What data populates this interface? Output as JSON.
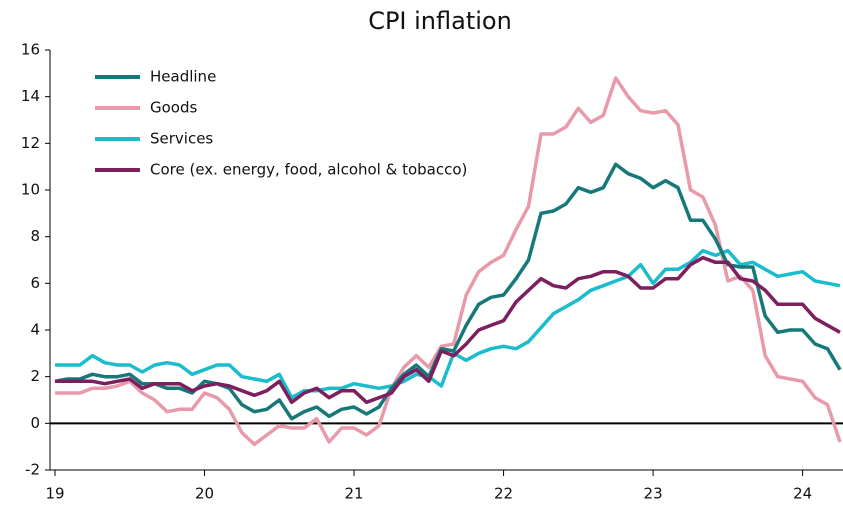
{
  "chart_data": {
    "type": "line",
    "title": "CPI inflation",
    "categories": [
      "19",
      null,
      null,
      null,
      null,
      null,
      null,
      null,
      null,
      null,
      null,
      null,
      "20",
      null,
      null,
      null,
      null,
      null,
      null,
      null,
      null,
      null,
      null,
      null,
      "21",
      null,
      null,
      null,
      null,
      null,
      null,
      null,
      null,
      null,
      null,
      null,
      "22",
      null,
      null,
      null,
      null,
      null,
      null,
      null,
      null,
      null,
      null,
      null,
      "23",
      null,
      null,
      null,
      null,
      null,
      null,
      null,
      null,
      null,
      null,
      null,
      "24",
      null,
      null,
      null
    ],
    "series": [
      {
        "name": "Headline",
        "color": "#17787a",
        "values": [
          1.8,
          1.9,
          1.9,
          2.1,
          2.0,
          2.0,
          2.1,
          1.7,
          1.7,
          1.5,
          1.5,
          1.3,
          1.8,
          1.7,
          1.5,
          0.8,
          0.5,
          0.6,
          1.0,
          0.2,
          0.5,
          0.7,
          0.3,
          0.6,
          0.7,
          0.4,
          0.7,
          1.5,
          2.1,
          2.5,
          2.0,
          3.2,
          3.1,
          4.2,
          5.1,
          5.4,
          5.5,
          6.2,
          7.0,
          9.0,
          9.1,
          9.4,
          10.1,
          9.9,
          10.1,
          11.1,
          10.7,
          10.5,
          10.1,
          10.4,
          10.1,
          8.7,
          8.7,
          7.9,
          6.8,
          6.7,
          6.7,
          4.6,
          3.9,
          4.0,
          4.0,
          3.4,
          3.2,
          2.3
        ]
      },
      {
        "name": "Goods",
        "color": "#e899aa",
        "values": [
          1.3,
          1.3,
          1.3,
          1.5,
          1.5,
          1.6,
          1.8,
          1.3,
          1.0,
          0.5,
          0.6,
          0.6,
          1.3,
          1.1,
          0.6,
          -0.4,
          -0.9,
          -0.5,
          -0.1,
          -0.2,
          -0.2,
          0.2,
          -0.8,
          -0.2,
          -0.2,
          -0.5,
          -0.1,
          1.5,
          2.4,
          2.9,
          2.4,
          3.3,
          3.4,
          5.5,
          6.5,
          6.9,
          7.2,
          8.3,
          9.3,
          12.4,
          12.4,
          12.7,
          13.5,
          12.9,
          13.2,
          14.8,
          14.0,
          13.4,
          13.3,
          13.4,
          12.8,
          10.0,
          9.7,
          8.5,
          6.1,
          6.3,
          5.7,
          2.9,
          2.0,
          1.9,
          1.8,
          1.1,
          0.8,
          -0.8
        ]
      },
      {
        "name": "Services",
        "color": "#1bbccc",
        "values": [
          2.5,
          2.5,
          2.5,
          2.9,
          2.6,
          2.5,
          2.5,
          2.2,
          2.5,
          2.6,
          2.5,
          2.1,
          2.3,
          2.5,
          2.5,
          2.0,
          1.9,
          1.8,
          2.1,
          1.1,
          1.4,
          1.4,
          1.5,
          1.5,
          1.7,
          1.6,
          1.5,
          1.6,
          1.8,
          2.1,
          2.0,
          1.6,
          3.0,
          2.7,
          3.0,
          3.2,
          3.3,
          3.2,
          3.5,
          4.1,
          4.7,
          5.0,
          5.3,
          5.7,
          5.9,
          6.1,
          6.3,
          6.8,
          6.0,
          6.6,
          6.6,
          6.9,
          7.4,
          7.2,
          7.4,
          6.8,
          6.9,
          6.6,
          6.3,
          6.4,
          6.5,
          6.1,
          6.0,
          5.9
        ]
      },
      {
        "name": "Core (ex. energy, food, alcohol & tobacco)",
        "color": "#7c1f5e",
        "values": [
          1.8,
          1.8,
          1.8,
          1.8,
          1.7,
          1.8,
          1.9,
          1.5,
          1.7,
          1.7,
          1.7,
          1.4,
          1.6,
          1.7,
          1.6,
          1.4,
          1.2,
          1.4,
          1.8,
          0.9,
          1.3,
          1.5,
          1.1,
          1.4,
          1.4,
          0.9,
          1.1,
          1.3,
          2.0,
          2.3,
          1.8,
          3.1,
          2.9,
          3.4,
          4.0,
          4.2,
          4.4,
          5.2,
          5.7,
          6.2,
          5.9,
          5.8,
          6.2,
          6.3,
          6.5,
          6.5,
          6.3,
          5.8,
          5.8,
          6.2,
          6.2,
          6.8,
          7.1,
          6.9,
          6.9,
          6.2,
          6.1,
          5.7,
          5.1,
          5.1,
          5.1,
          4.5,
          4.2,
          3.9
        ]
      }
    ],
    "ylim": [
      -2,
      16
    ],
    "yticks": [
      -2,
      0,
      2,
      4,
      6,
      8,
      10,
      12,
      14,
      16
    ],
    "grid": false,
    "legend": "upper left"
  }
}
